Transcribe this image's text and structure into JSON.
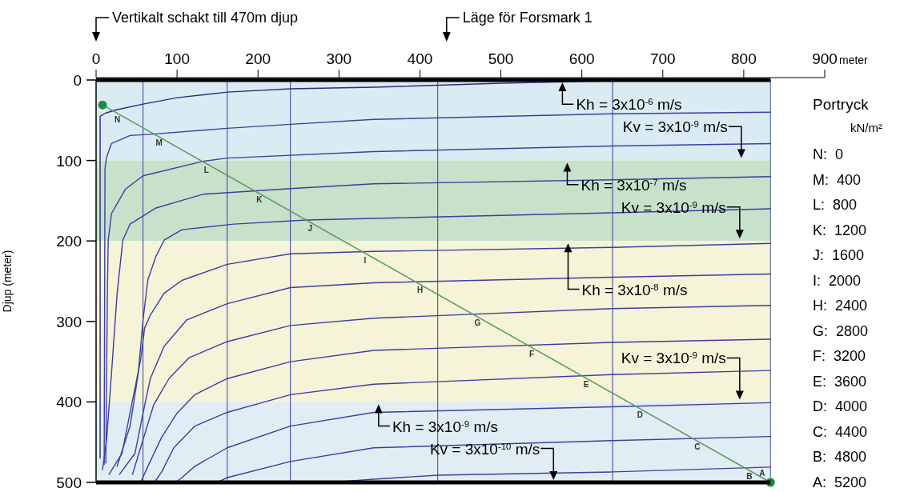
{
  "chart_data": {
    "type": "line",
    "xlabel": "meter",
    "ylabel": "Djup (meter)",
    "legend_title": "Portryck",
    "xlim": [
      0,
      900
    ],
    "xticks": [
      0,
      100,
      200,
      300,
      400,
      500,
      600,
      700,
      800,
      900
    ],
    "ylim": [
      500,
      0
    ],
    "yticks": [
      0,
      100,
      200,
      300,
      400,
      500
    ],
    "bands": [
      {
        "axis": "y",
        "from": 0,
        "to": 100,
        "color": "#dbebf3"
      },
      {
        "axis": "y",
        "from": 100,
        "to": 200,
        "color": "#c8e1cb"
      },
      {
        "axis": "y",
        "from": 200,
        "to": 400,
        "color": "#f5f3d8"
      },
      {
        "axis": "y",
        "from": 400,
        "to": 500,
        "color": "#e1edf5"
      }
    ],
    "ref_lines": [
      {
        "axis": "x",
        "value": 58,
        "color": "#3c3f9e"
      },
      {
        "axis": "x",
        "value": 162,
        "color": "#3c3f9e"
      },
      {
        "axis": "x",
        "value": 240,
        "color": "#3c3f9e"
      },
      {
        "axis": "x",
        "value": 422,
        "color": "#3c3f9e"
      },
      {
        "axis": "x",
        "value": 638,
        "color": "#3c3f9e"
      },
      {
        "axis": "x",
        "value": 833,
        "color": "#5a5e86"
      }
    ],
    "series": [
      {
        "name": "N",
        "color": "#2a2d80",
        "x": [
          5,
          5,
          12,
          25,
          58,
          100,
          162,
          240,
          343,
          500,
          638,
          833
        ],
        "values": [
          470,
          45,
          41,
          37,
          30,
          22,
          15,
          11,
          9,
          4,
          1,
          0
        ]
      },
      {
        "name": "M",
        "color": "#3c3f9e",
        "x": [
          10,
          11,
          13,
          19,
          42,
          74,
          162,
          240,
          343,
          638,
          833
        ],
        "values": [
          478,
          110,
          96,
          79,
          69,
          67,
          60,
          55,
          49,
          42,
          40
        ]
      },
      {
        "name": "L",
        "color": "#3c3f9e",
        "x": [
          12,
          14,
          15,
          19,
          36,
          58,
          132,
          162,
          343,
          638,
          833
        ],
        "values": [
          476,
          260,
          199,
          166,
          136,
          119,
          101,
          97,
          89,
          82,
          79
        ]
      },
      {
        "name": "K",
        "color": "#3c3f9e",
        "x": [
          8,
          13,
          19,
          26,
          33,
          42,
          74,
          132,
          240,
          343,
          638,
          833
        ],
        "values": [
          484,
          447,
          365,
          265,
          199,
          179,
          159,
          142,
          135,
          129,
          124,
          120
        ]
      },
      {
        "name": "J",
        "color": "#3c3f9e",
        "x": [
          26,
          42,
          52,
          58,
          64,
          74,
          84,
          106,
          170,
          260,
          343,
          638,
          833
        ],
        "values": [
          480,
          430,
          365,
          298,
          248,
          219,
          199,
          186,
          179,
          174,
          172,
          165,
          160
        ]
      },
      {
        "name": "I",
        "color": "#3c3f9e",
        "x": [
          16,
          32,
          45,
          55,
          60,
          67,
          84,
          106,
          162,
          240,
          343,
          638,
          833
        ],
        "values": [
          490,
          464,
          398,
          348,
          308,
          292,
          265,
          249,
          229,
          216,
          213,
          208,
          203
        ]
      },
      {
        "name": "H",
        "color": "#3c3f9e",
        "x": [
          29,
          48,
          58,
          67,
          84,
          112,
          162,
          240,
          343,
          638,
          833
        ],
        "values": [
          490,
          464,
          414,
          371,
          331,
          298,
          278,
          258,
          252,
          245,
          241
        ]
      },
      {
        "name": "G",
        "color": "#3c3f9e",
        "x": [
          45,
          58,
          71,
          90,
          115,
          162,
          240,
          343,
          638,
          833
        ],
        "values": [
          490,
          447,
          404,
          371,
          345,
          325,
          305,
          296,
          284,
          280
        ]
      },
      {
        "name": "F",
        "color": "#3c3f9e",
        "x": [
          55,
          64,
          81,
          100,
          122,
          162,
          240,
          343,
          638,
          833
        ],
        "values": [
          500,
          480,
          444,
          414,
          391,
          371,
          350,
          336,
          326,
          322
        ]
      },
      {
        "name": "E",
        "color": "#3c3f9e",
        "x": [
          72,
          81,
          96,
          122,
          162,
          240,
          343,
          638,
          833
        ],
        "values": [
          500,
          487,
          457,
          430,
          413,
          391,
          378,
          366,
          361
        ]
      },
      {
        "name": "D",
        "color": "#3c3f9e",
        "x": [
          98,
          106,
          122,
          162,
          240,
          343,
          638,
          833
        ],
        "values": [
          500,
          494,
          480,
          457,
          430,
          413,
          406,
          401
        ]
      },
      {
        "name": "C",
        "color": "#3c3f9e",
        "x": [
          150,
          162,
          240,
          343,
          638,
          833
        ],
        "values": [
          500,
          494,
          474,
          457,
          448,
          443
        ]
      },
      {
        "name": "B",
        "color": "#3c3f9e",
        "x": [
          290,
          343,
          422,
          638,
          833
        ],
        "values": [
          500,
          496,
          491,
          487,
          481
        ]
      },
      {
        "color": "#5a9a5a",
        "marker": "circle",
        "x": [
          8,
          833
        ],
        "values": [
          31,
          500
        ]
      }
    ],
    "annotations": [
      "Vertikalt schakt till 470m djup",
      "Läge för Forsmark 1",
      {
        "text": "Kh = 3x10$^{-6}$ m/s",
        "x": 576,
        "y": 0
      },
      {
        "text": "Kv = 3x10$^{-9}$ m/s",
        "x": 797,
        "y": 100
      },
      {
        "text": "Kh = 3x10$^{-7}$ m/s",
        "x": 582,
        "y": 100
      },
      {
        "text": "Kv = 3x10$^{-9}$ m/s",
        "x": 795,
        "y": 200
      },
      {
        "text": "Kh = 3x10$^{-8}$ m/s",
        "x": 583,
        "y": 200
      },
      {
        "text": "Kv = 3x10$^{-9}$ m/s",
        "x": 795,
        "y": 400
      },
      {
        "text": "Kh = 3x10$^{-9}$ m/s",
        "x": 349,
        "y": 400
      },
      {
        "text": "Kv = 3x10$^{-10}$ m/s",
        "x": 565,
        "y": 500
      },
      {
        "text": "A",
        "x": 833,
        "y": 500
      },
      "kN/m²",
      "N:  0",
      "M:  400",
      "L:  800",
      "K:  1200",
      "J:  1600",
      "I:  2000",
      "H:  2400",
      "G:  2800",
      "F:  3200",
      "E:  3600",
      "D:  4000",
      "C:  4400",
      "B:  4800",
      "A:  5200"
    ]
  }
}
